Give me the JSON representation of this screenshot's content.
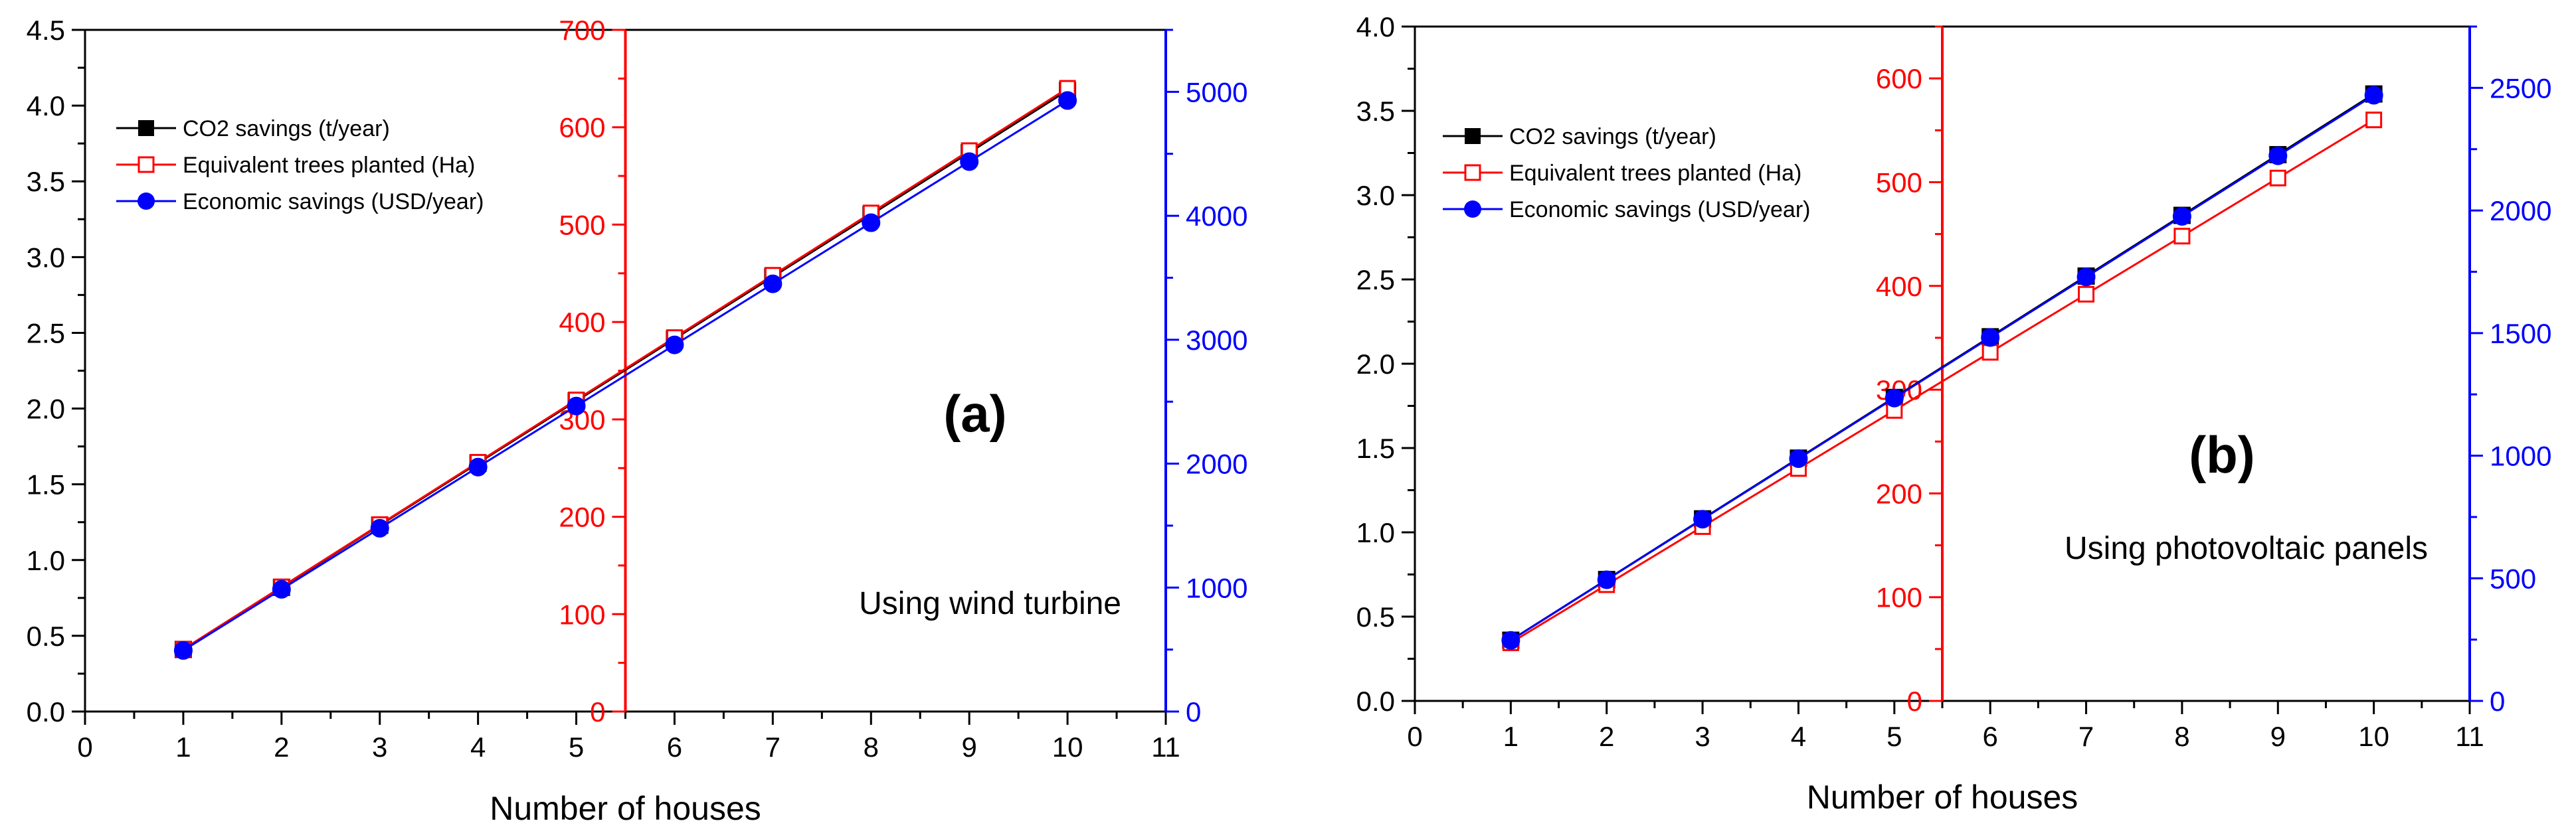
{
  "chart_data": [
    {
      "type": "line",
      "panel_label": "(a)",
      "annotation": "Using wind turbine",
      "xlabel": "Number of houses",
      "x": [
        1,
        2,
        3,
        4,
        5,
        6,
        7,
        8,
        9,
        10
      ],
      "xlim": [
        0,
        11
      ],
      "xticks": [
        "0",
        "1",
        "2",
        "3",
        "4",
        "5",
        "6",
        "7",
        "8",
        "9",
        "10",
        "11"
      ],
      "axes": {
        "left": {
          "ylim": [
            0,
            4.5
          ],
          "ticks": [
            "0.0",
            "0.5",
            "1.0",
            "1.5",
            "2.0",
            "2.5",
            "3.0",
            "3.5",
            "4.0",
            "4.5"
          ],
          "color": "#000000"
        },
        "mid": {
          "ylim": [
            0,
            700
          ],
          "ticks": [
            "0",
            "100",
            "200",
            "300",
            "400",
            "500",
            "600",
            "700"
          ],
          "color": "#ff0000",
          "at_x": 5.5
        },
        "right": {
          "ylim": [
            0,
            5500
          ],
          "ticks": [
            "0",
            "1000",
            "2000",
            "3000",
            "4000",
            "5000"
          ],
          "color": "#0000ff"
        }
      },
      "legend_position": "top-left",
      "series": [
        {
          "name": "CO2 savings (t/year)",
          "axis": "left",
          "color": "#000000",
          "marker": "filled-square",
          "values": [
            0.41,
            0.82,
            1.23,
            1.64,
            2.05,
            2.46,
            2.87,
            3.28,
            3.69,
            4.1
          ]
        },
        {
          "name": "Equivalent trees planted (Ha)",
          "axis": "mid",
          "color": "#ff0000",
          "marker": "open-square",
          "values": [
            64,
            128,
            192,
            256,
            320,
            384,
            448,
            512,
            576,
            640
          ]
        },
        {
          "name": "Economic savings (USD/year)",
          "axis": "right",
          "color": "#0000ff",
          "marker": "filled-circle",
          "values": [
            493,
            986,
            1479,
            1972,
            2465,
            2958,
            3451,
            3944,
            4437,
            4930
          ]
        }
      ]
    },
    {
      "type": "line",
      "panel_label": "(b)",
      "annotation": "Using photovoltaic panels",
      "xlabel": "Number of houses",
      "x": [
        1,
        2,
        3,
        4,
        5,
        6,
        7,
        8,
        9,
        10
      ],
      "xlim": [
        0,
        11
      ],
      "xticks": [
        "0",
        "1",
        "2",
        "3",
        "4",
        "5",
        "6",
        "7",
        "8",
        "9",
        "10",
        "11"
      ],
      "axes": {
        "left": {
          "ylim": [
            0,
            4.0
          ],
          "ticks": [
            "0.0",
            "0.5",
            "1.0",
            "1.5",
            "2.0",
            "2.5",
            "3.0",
            "3.5",
            "4.0"
          ],
          "color": "#000000"
        },
        "mid": {
          "ylim": [
            0,
            650
          ],
          "ticks": [
            "0",
            "100",
            "200",
            "300",
            "400",
            "500",
            "600"
          ],
          "color": "#ff0000",
          "at_x": 5.5
        },
        "right": {
          "ylim": [
            0,
            2750
          ],
          "ticks": [
            "0",
            "500",
            "1000",
            "1500",
            "2000",
            "2500"
          ],
          "color": "#0000ff"
        }
      },
      "legend_position": "top-left",
      "series": [
        {
          "name": "CO2 savings (t/year)",
          "axis": "left",
          "color": "#000000",
          "marker": "filled-square",
          "values": [
            0.36,
            0.72,
            1.08,
            1.44,
            1.8,
            2.16,
            2.52,
            2.88,
            3.24,
            3.6
          ]
        },
        {
          "name": "Equivalent trees planted (Ha)",
          "axis": "mid",
          "color": "#ff0000",
          "marker": "open-square",
          "values": [
            56,
            112,
            168,
            224,
            280,
            336,
            392,
            448,
            504,
            560
          ]
        },
        {
          "name": "Economic savings (USD/year)",
          "axis": "right",
          "color": "#0000ff",
          "marker": "filled-circle",
          "values": [
            247,
            494,
            741,
            988,
            1235,
            1482,
            1729,
            1976,
            2223,
            2470
          ]
        }
      ]
    }
  ]
}
